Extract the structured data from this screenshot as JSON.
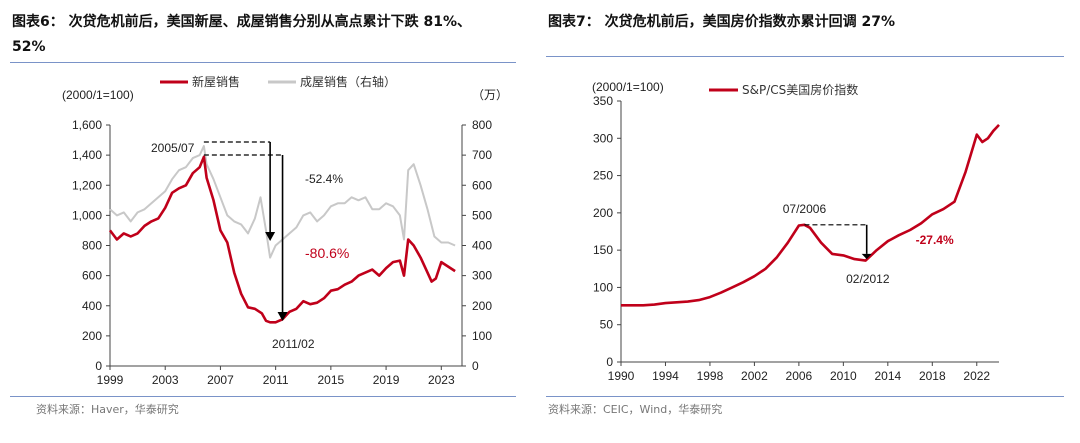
{
  "left": {
    "title_line1": "图表6：  次贷危机前后，美国新屋、成屋销售分别从高点累计下跌 81%、",
    "title_line2": "52%",
    "source": "资料来源：Haver，华泰研究",
    "chart_data": {
      "type": "line",
      "xlabel": "",
      "ylabel_left": "(2000/1=100)",
      "ylabel_right": "（万）",
      "xlim": [
        1999,
        2024.5
      ],
      "ylim_left": [
        0,
        1600
      ],
      "ylim_right": [
        0,
        800
      ],
      "x_ticks": [
        "1999",
        "2003",
        "2007",
        "2011",
        "2015",
        "2019",
        "2023"
      ],
      "y_ticks_left": [
        "0",
        "200",
        "400",
        "600",
        "800",
        "1,000",
        "1,200",
        "1,400",
        "1,600"
      ],
      "y_ticks_right": [
        "0",
        "100",
        "200",
        "300",
        "400",
        "500",
        "600",
        "700",
        "800"
      ],
      "legend": [
        "新屋销售",
        "成屋销售（右轴）"
      ],
      "series": [
        {
          "name": "新屋销售",
          "axis": "left",
          "color": "#c0001a",
          "x": [
            1999,
            1999.5,
            2000,
            2000.5,
            2001,
            2001.5,
            2002,
            2002.5,
            2003,
            2003.5,
            2004,
            2004.5,
            2005,
            2005.5,
            2005.8,
            2006,
            2006.5,
            2007,
            2007.5,
            2008,
            2008.5,
            2009,
            2009.5,
            2010,
            2010.3,
            2010.6,
            2011,
            2011.5,
            2012,
            2012.5,
            2013,
            2013.5,
            2014,
            2014.5,
            2015,
            2015.5,
            2016,
            2016.5,
            2017,
            2017.5,
            2018,
            2018.5,
            2019,
            2019.5,
            2020,
            2020.3,
            2020.6,
            2021,
            2021.5,
            2022,
            2022.3,
            2022.6,
            2023,
            2023.5,
            2024
          ],
          "y": [
            900,
            840,
            880,
            860,
            880,
            930,
            960,
            980,
            1050,
            1150,
            1180,
            1200,
            1280,
            1320,
            1389,
            1250,
            1100,
            900,
            820,
            620,
            480,
            390,
            380,
            350,
            300,
            290,
            290,
            310,
            360,
            380,
            430,
            410,
            420,
            450,
            500,
            510,
            540,
            560,
            600,
            620,
            640,
            600,
            650,
            690,
            700,
            600,
            840,
            800,
            720,
            620,
            560,
            580,
            690,
            660,
            630
          ]
        },
        {
          "name": "成屋销售（右轴）",
          "axis": "right",
          "color": "#c8c8c8",
          "x": [
            1999,
            1999.5,
            2000,
            2000.5,
            2001,
            2001.5,
            2002,
            2002.5,
            2003,
            2003.5,
            2004,
            2004.5,
            2005,
            2005.5,
            2005.8,
            2006,
            2006.5,
            2007,
            2007.5,
            2008,
            2008.5,
            2009,
            2009.5,
            2009.9,
            2010.3,
            2010.6,
            2011,
            2011.5,
            2012,
            2012.5,
            2013,
            2013.5,
            2014,
            2014.5,
            2015,
            2015.5,
            2016,
            2016.5,
            2017,
            2017.5,
            2018,
            2018.5,
            2019,
            2019.5,
            2020,
            2020.3,
            2020.6,
            2021,
            2021.5,
            2022,
            2022.5,
            2023,
            2023.5,
            2024
          ],
          "y": [
            520,
            500,
            510,
            480,
            510,
            520,
            540,
            560,
            580,
            620,
            650,
            660,
            690,
            700,
            730,
            670,
            620,
            560,
            500,
            480,
            470,
            440,
            490,
            560,
            450,
            360,
            400,
            420,
            440,
            460,
            500,
            510,
            480,
            500,
            530,
            540,
            540,
            560,
            550,
            560,
            520,
            520,
            540,
            530,
            500,
            420,
            650,
            670,
            600,
            520,
            430,
            410,
            410,
            400
          ]
        }
      ],
      "annotations": {
        "peak_label": "2005/07",
        "trough_label": "2011/02",
        "new_drop": "-80.6%",
        "existing_drop": "-52.4%"
      }
    }
  },
  "right": {
    "title": "图表7：  次贷危机前后，美国房价指数亦累计回调 27%",
    "source": "资料来源：CEIC，Wind，华泰研究",
    "chart_data": {
      "type": "line",
      "ylabel": "(2000/1=100)",
      "xlim": [
        1990,
        2024
      ],
      "ylim": [
        0,
        350
      ],
      "x_ticks": [
        "1990",
        "1994",
        "1998",
        "2002",
        "2006",
        "2010",
        "2014",
        "2018",
        "2022"
      ],
      "y_ticks": [
        "0",
        "50",
        "100",
        "150",
        "200",
        "250",
        "300",
        "350"
      ],
      "legend": [
        "S&P/CS美国房价指数"
      ],
      "series": [
        {
          "name": "S&P/CS美国房价指数",
          "color": "#c0001a",
          "x": [
            1990,
            1991,
            1992,
            1993,
            1994,
            1995,
            1996,
            1997,
            1998,
            1999,
            2000,
            2001,
            2002,
            2003,
            2004,
            2005,
            2006,
            2006.5,
            2007,
            2008,
            2009,
            2010,
            2011,
            2012,
            2013,
            2014,
            2015,
            2016,
            2017,
            2018,
            2019,
            2020,
            2021,
            2021.5,
            2022,
            2022.5,
            2023,
            2023.5,
            2024
          ],
          "y": [
            76,
            76,
            76,
            77,
            79,
            80,
            81,
            83,
            87,
            93,
            100,
            107,
            115,
            125,
            140,
            160,
            183,
            184,
            180,
            160,
            145,
            143,
            138,
            136,
            150,
            162,
            170,
            177,
            186,
            198,
            205,
            215,
            255,
            280,
            305,
            295,
            300,
            310,
            318
          ]
        }
      ],
      "annotations": {
        "peak_label": "07/2006",
        "trough_label": "02/2012",
        "drop": "-27.4%"
      }
    }
  }
}
